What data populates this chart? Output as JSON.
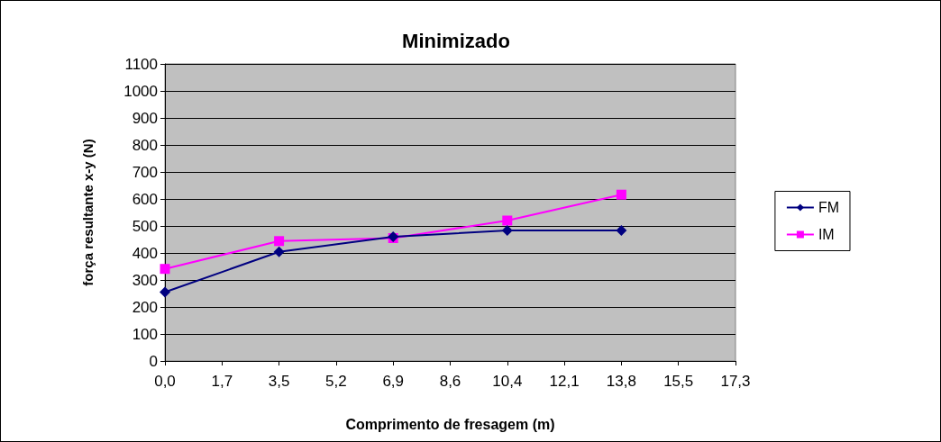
{
  "chart_data": {
    "type": "line",
    "title": "Minimizado",
    "xlabel": "Comprimento de fresagem (m)",
    "ylabel": "força resultante x-y (N)",
    "categories": [
      "0,0",
      "1,7",
      "3,5",
      "5,2",
      "6,9",
      "8,6",
      "10,4",
      "12,1",
      "13,8",
      "15,5",
      "17,3"
    ],
    "series": [
      {
        "name": "FM",
        "color": "#000080",
        "marker": "diamond",
        "values": [
          255,
          null,
          404,
          null,
          460,
          null,
          483,
          null,
          483,
          null,
          null
        ]
      },
      {
        "name": "IM",
        "color": "#ff00ff",
        "marker": "square",
        "values": [
          341,
          null,
          444,
          null,
          455,
          null,
          520,
          null,
          616,
          null,
          null
        ]
      }
    ],
    "ylim": [
      0,
      1100
    ],
    "yticks": [
      0,
      100,
      200,
      300,
      400,
      500,
      600,
      700,
      800,
      900,
      1000,
      1100
    ],
    "grid": "y",
    "legend": "right"
  }
}
